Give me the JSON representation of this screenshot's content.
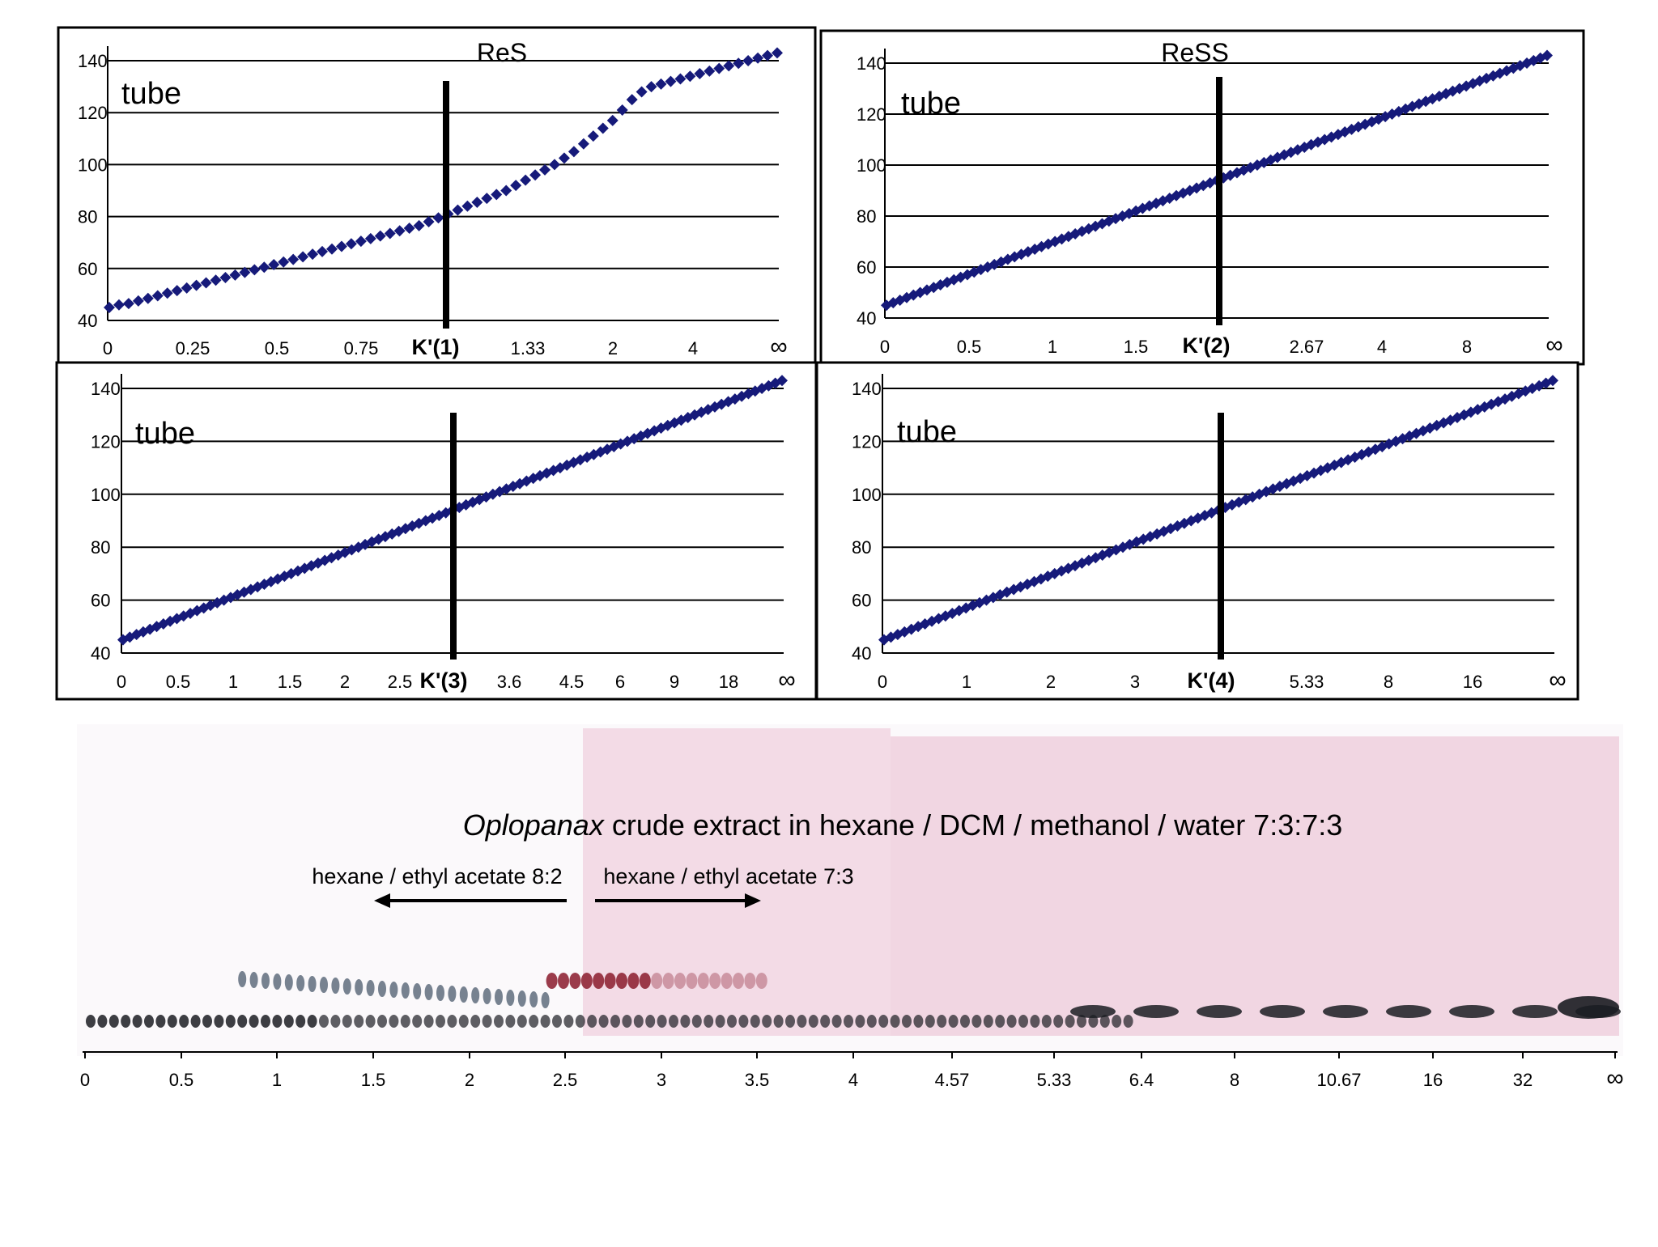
{
  "colors": {
    "marker": "#161a7a",
    "plate_pink": "#f3dbe6",
    "plate_white": "#fbf9fb",
    "spot_dark": "#1b1d22",
    "spot_red": "#8a1b2c"
  },
  "chart_data": [
    {
      "type": "scatter",
      "title": "ReS",
      "ylabel": "tube",
      "ylim": [
        40,
        140
      ],
      "yticks": [
        "40",
        "60",
        "80",
        "100",
        "120",
        "140"
      ],
      "x_tick_labels": [
        "0",
        "0.25",
        "0.5",
        "0.75",
        "K'(1)",
        "1.33",
        "2",
        "4",
        "∞"
      ],
      "grid": true,
      "marker_line_label": "K'(1)",
      "tube_values": [
        45,
        46,
        46.5,
        47.5,
        48.5,
        49.5,
        50.5,
        51.5,
        52.5,
        53.5,
        54.5,
        55.5,
        56.5,
        57.5,
        58.5,
        59.5,
        60.5,
        61.5,
        62.5,
        63.5,
        64.5,
        65.5,
        66.5,
        67.5,
        68.5,
        69.5,
        70.5,
        71.5,
        72.5,
        73.5,
        74.5,
        75.5,
        76.5,
        78,
        79.5,
        81,
        82.5,
        84,
        85.5,
        87,
        88.5,
        90,
        92,
        94,
        96,
        98,
        100,
        102.5,
        105,
        108,
        111,
        114,
        117,
        121,
        125,
        128,
        130,
        131,
        132,
        133,
        134,
        135,
        136,
        137,
        138,
        139,
        140,
        141,
        142,
        143
      ]
    },
    {
      "type": "scatter",
      "title": "ReSS",
      "ylabel": "tube",
      "ylim": [
        40,
        140
      ],
      "yticks": [
        "40",
        "60",
        "80",
        "100",
        "120",
        "140"
      ],
      "x_tick_labels": [
        "0",
        "0.5",
        "1",
        "1.5",
        "K'(2)",
        "2.67",
        "4",
        "8",
        "∞"
      ],
      "grid": true,
      "marker_line_label": "K'(2)",
      "tube_values": [
        45,
        46,
        47,
        48,
        49,
        50,
        51,
        52,
        53,
        54,
        55,
        56,
        57,
        58,
        59,
        60,
        61,
        62,
        63,
        64,
        65,
        66,
        67,
        68,
        69,
        70,
        71,
        72,
        73,
        74,
        75,
        76,
        77,
        78,
        79,
        80,
        81,
        82,
        83,
        84,
        85,
        86,
        87,
        88,
        89,
        90,
        91,
        92,
        93,
        94,
        95,
        96,
        97,
        98,
        99,
        100,
        101,
        102,
        103,
        104,
        105,
        106,
        107,
        108,
        109,
        110,
        111,
        112,
        113,
        114,
        115,
        116,
        117,
        118,
        119,
        120,
        121,
        122,
        123,
        124,
        125,
        126,
        127,
        128,
        129,
        130,
        131,
        132,
        133,
        134,
        135,
        136,
        137,
        138,
        139,
        140,
        141,
        142,
        143
      ]
    },
    {
      "type": "scatter",
      "title": "",
      "ylabel": "tube",
      "ylim": [
        40,
        140
      ],
      "yticks": [
        "40",
        "60",
        "80",
        "100",
        "120",
        "140"
      ],
      "x_tick_labels": [
        "0",
        "0.5",
        "1",
        "1.5",
        "2",
        "2.5",
        "K'(3)",
        "3.6",
        "4.5",
        "6",
        "9",
        "18",
        "∞"
      ],
      "grid": true,
      "marker_line_label": "K'(3)",
      "tube_values": [
        45,
        46,
        47,
        48,
        49,
        50,
        51,
        52,
        53,
        54,
        55,
        56,
        57,
        58,
        59,
        60,
        61,
        62,
        63,
        64,
        65,
        66,
        67,
        68,
        69,
        70,
        71,
        72,
        73,
        74,
        75,
        76,
        77,
        78,
        79,
        80,
        81,
        82,
        83,
        84,
        85,
        86,
        87,
        88,
        89,
        90,
        91,
        92,
        93,
        94,
        95,
        96,
        97,
        98,
        99,
        100,
        101,
        102,
        103,
        104,
        105,
        106,
        107,
        108,
        109,
        110,
        111,
        112,
        113,
        114,
        115,
        116,
        117,
        118,
        119,
        120,
        121,
        122,
        123,
        124,
        125,
        126,
        127,
        128,
        129,
        130,
        131,
        132,
        133,
        134,
        135,
        136,
        137,
        138,
        139,
        140,
        141,
        142,
        143
      ]
    },
    {
      "type": "scatter",
      "title": "",
      "ylabel": "tube",
      "ylim": [
        40,
        140
      ],
      "yticks": [
        "40",
        "60",
        "80",
        "100",
        "120",
        "140"
      ],
      "x_tick_labels": [
        "0",
        "1",
        "2",
        "3",
        "K'(4)",
        "5.33",
        "8",
        "16",
        "∞"
      ],
      "grid": true,
      "marker_line_label": "K'(4)",
      "tube_values": [
        45,
        46,
        47,
        48,
        49,
        50,
        51,
        52,
        53,
        54,
        55,
        56,
        57,
        58,
        59,
        60,
        61,
        62,
        63,
        64,
        65,
        66,
        67,
        68,
        69,
        70,
        71,
        72,
        73,
        74,
        75,
        76,
        77,
        78,
        79,
        80,
        81,
        82,
        83,
        84,
        85,
        86,
        87,
        88,
        89,
        90,
        91,
        92,
        93,
        94,
        95,
        96,
        97,
        98,
        99,
        100,
        101,
        102,
        103,
        104,
        105,
        106,
        107,
        108,
        109,
        110,
        111,
        112,
        113,
        114,
        115,
        116,
        117,
        118,
        119,
        120,
        121,
        122,
        123,
        124,
        125,
        126,
        127,
        128,
        129,
        130,
        131,
        132,
        133,
        134,
        135,
        136,
        137,
        138,
        139,
        140,
        141,
        142,
        143
      ]
    }
  ],
  "tlc": {
    "title_italic": "Oplopanax",
    "title_rest": " crude extract in hexane / DCM / methanol / water 7:3:7:3",
    "left_label": "hexane / ethyl acetate 8:2",
    "right_label": "hexane / ethyl acetate 7:3",
    "axis_labels": [
      "0",
      "0.5",
      "1",
      "1.5",
      "2",
      "2.5",
      "3",
      "3.5",
      "4",
      "4.57",
      "5.33",
      "6.4",
      "8",
      "10.67",
      "16",
      "32",
      "∞"
    ]
  }
}
